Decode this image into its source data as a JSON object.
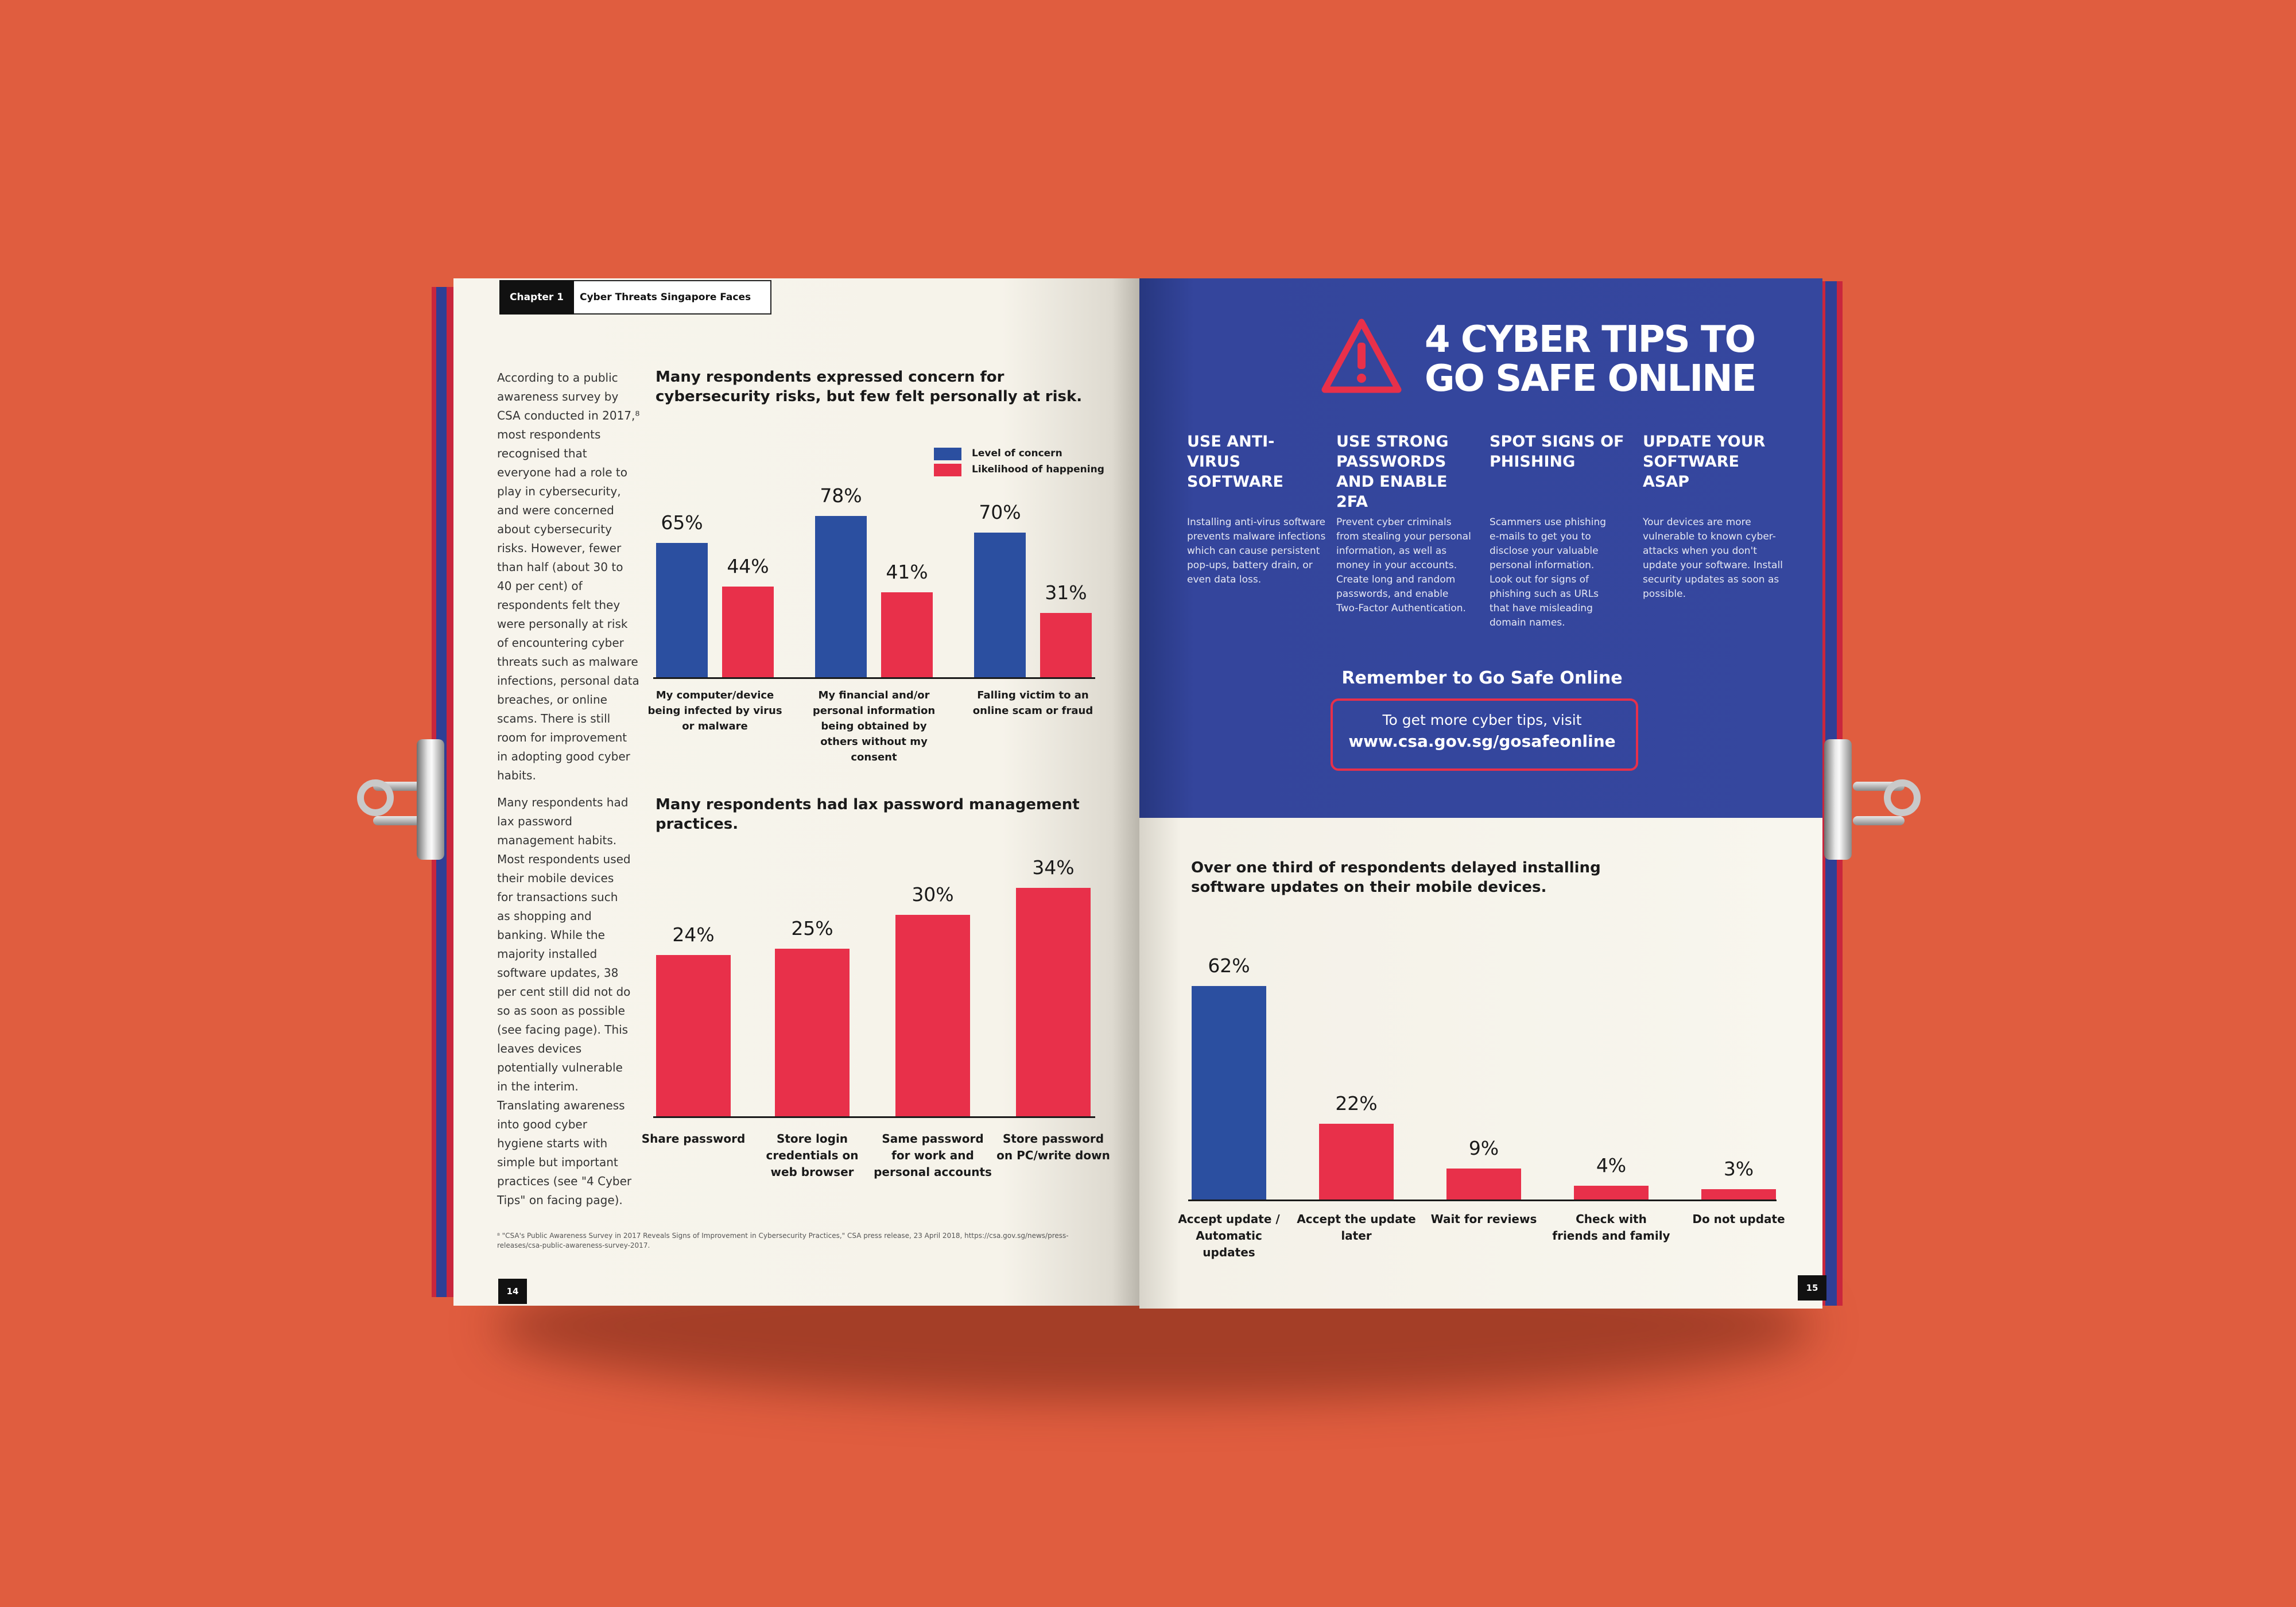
{
  "header": {
    "chapter_tag": "Chapter 1",
    "chapter_title": "Cyber Threats Singapore Faces"
  },
  "left_page": {
    "para1": "According to a public awareness survey by CSA conducted in 2017,⁸ most respondents recognised that everyone had a role to play in cybersecurity, and were concerned about cybersecurity risks. However, fewer than half (about 30 to 40 per cent) of respondents felt they were personally at risk of encountering cyber threats such as malware infections, personal data breaches, or online scams. There is still room for improvement in adopting good cyber habits.",
    "para2": "Many respondents had lax password management habits. Most respondents used their mobile devices for transactions such as shopping and banking. While the majority installed software updates, 38 per cent still did not do so as soon as possible (see facing page). This leaves devices potentially vulnerable in the interim. Translating awareness into good cyber hygiene starts with simple but important practices (see \"4 Cyber Tips\" on facing page).",
    "footnote": "⁸ \"CSA's Public Awareness Survey in 2017 Reveals Signs of Improvement in Cybersecurity Practices,\" CSA press release, 23 April 2018, https://csa.gov.sg/news/press-releases/csa-public-awareness-survey-2017.",
    "page_number": "14"
  },
  "right_page": {
    "tips_heading_line1": "4 CYBER TIPS TO",
    "tips_heading_line2": "GO SAFE ONLINE",
    "tips": [
      {
        "title": "USE ANTI-VIRUS SOFTWARE",
        "body": "Installing anti-virus software prevents malware infections which can cause persistent pop-ups, battery drain, or even data loss."
      },
      {
        "title": "USE STRONG PASSWORDS AND ENABLE 2FA",
        "body": "Prevent cyber criminals from stealing your personal information, as well as money in your accounts. Create long and random passwords, and enable Two-Factor Authentication."
      },
      {
        "title": "SPOT SIGNS OF PHISHING",
        "body": "Scammers use phishing e-mails to get you to disclose your valuable personal information. Look out for signs of phishing such as URLs that have misleading domain names."
      },
      {
        "title": "UPDATE YOUR SOFTWARE ASAP",
        "body": "Your devices are more vulnerable to known cyber-attacks when you don't update your software. Install security updates as soon as possible."
      }
    ],
    "remember": "Remember to Go Safe Online",
    "cta_line1": "To get more cyber tips, visit",
    "cta_line2": "www.csa.gov.sg/gosafeonline",
    "page_number": "15"
  },
  "colors": {
    "blue": "#2b4fa0",
    "red": "#e8304a",
    "panel": "#35479e",
    "background": "#e05d3f"
  },
  "icons": {
    "warning": "warning-triangle-icon"
  },
  "chart_data": [
    {
      "type": "bar",
      "title": "Many respondents expressed concern for cybersecurity risks, but few felt personally at risk.",
      "categories": [
        "My computer/device being infected by virus or malware",
        "My financial and/or personal information being obtained by others without my consent",
        "Falling victim to an online scam or fraud"
      ],
      "series": [
        {
          "name": "Level of concern",
          "values": [
            65,
            78,
            70
          ],
          "labels": [
            "65%",
            "78%",
            "70%"
          ]
        },
        {
          "name": "Likelihood of happening",
          "values": [
            44,
            41,
            31
          ],
          "labels": [
            "44%",
            "41%",
            "31%"
          ]
        }
      ],
      "legend_placement": "top-right",
      "ylim": [
        0,
        100
      ]
    },
    {
      "type": "bar",
      "title": "Many respondents had lax password management practices.",
      "categories": [
        "Share password",
        "Store login credentials on web browser",
        "Same password for work and personal accounts",
        "Store password on PC/write down"
      ],
      "values": [
        24,
        25,
        30,
        34
      ],
      "labels": [
        "24%",
        "25%",
        "30%",
        "34%"
      ],
      "ylim": [
        0,
        40
      ]
    },
    {
      "type": "bar",
      "title": "Over one third of respondents delayed installing software updates on their mobile devices.",
      "categories": [
        "Accept update / Automatic updates",
        "Accept the update later",
        "Wait for reviews",
        "Check with friends and family",
        "Do not update"
      ],
      "values": [
        62,
        22,
        9,
        4,
        3
      ],
      "labels": [
        "62%",
        "22%",
        "9%",
        "4%",
        "3%"
      ],
      "ylim": [
        0,
        70
      ]
    }
  ]
}
